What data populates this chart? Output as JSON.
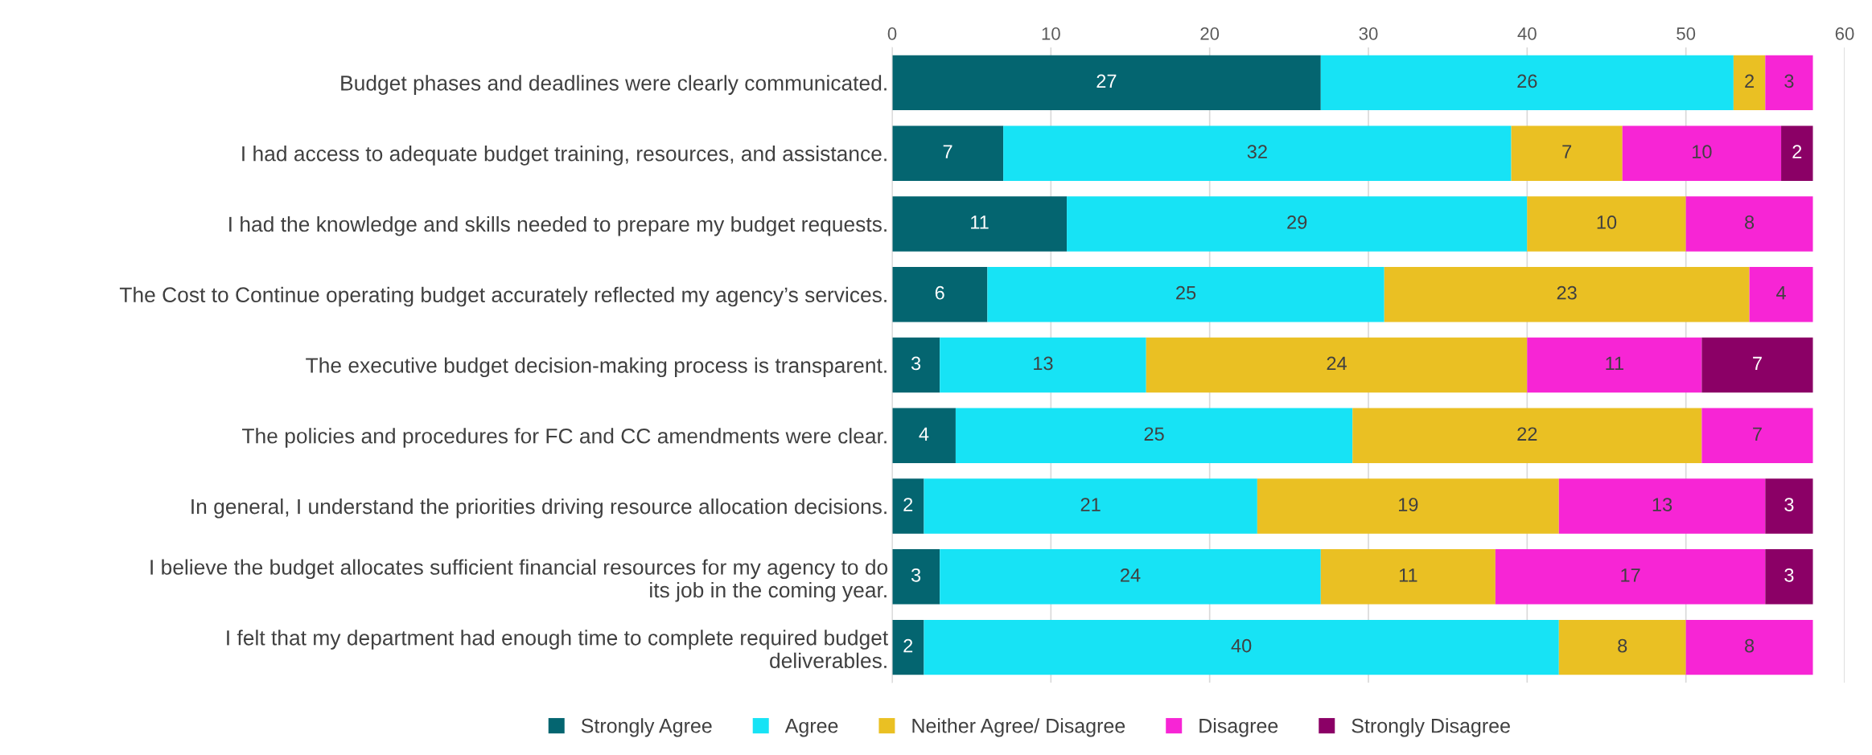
{
  "chart_data": {
    "type": "bar",
    "orientation": "horizontal",
    "stacked": true,
    "data_labels": true,
    "grid": "x",
    "legend": "bottom",
    "categories": [
      "Budget phases and deadlines were clearly communicated.",
      "I had access to adequate budget training, resources, and assistance.",
      "I had the knowledge and skills needed to prepare my budget requests.",
      "The Cost to Continue operating budget accurately reflected my agency’s services.",
      "The executive budget decision-making process is transparent.",
      "The policies and procedures for FC and CC amendments were clear.",
      "In general, I understand the priorities driving resource allocation decisions.",
      "I believe the budget allocates sufficient financial resources for my agency to do its job in the coming year.",
      "I felt that my department had enough time to complete required budget deliverables."
    ],
    "xlim": [
      0,
      60
    ],
    "xticks": [
      0,
      10,
      20,
      30,
      40,
      50,
      60
    ],
    "series": [
      {
        "name": "Strongly Agree",
        "color": "#046570",
        "values": [
          27,
          7,
          11,
          6,
          3,
          4,
          2,
          3,
          2
        ]
      },
      {
        "name": "Agree",
        "color": "#17e3f5",
        "values": [
          26,
          32,
          29,
          25,
          13,
          25,
          21,
          24,
          40
        ]
      },
      {
        "name": "Neither Agree/ Disagree",
        "color": "#eac023",
        "values": [
          2,
          7,
          10,
          23,
          24,
          22,
          19,
          11,
          8
        ]
      },
      {
        "name": "Disagree",
        "color": "#f725d5",
        "values": [
          3,
          10,
          8,
          4,
          11,
          7,
          13,
          17,
          8
        ]
      },
      {
        "name": "Strongly Disagree",
        "color": "#8b0066",
        "values": [
          null,
          2,
          null,
          null,
          7,
          null,
          3,
          3,
          null
        ]
      }
    ]
  }
}
